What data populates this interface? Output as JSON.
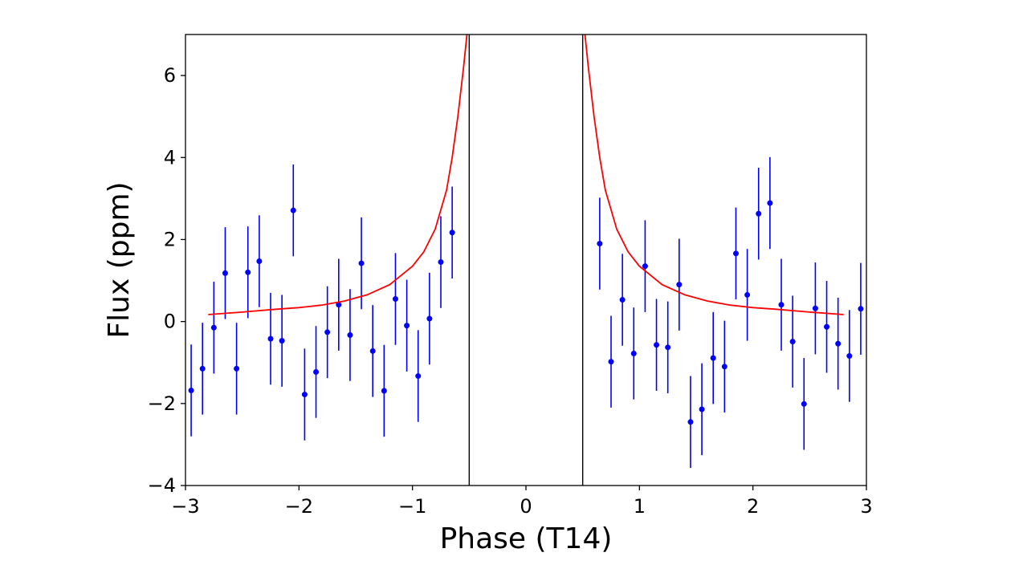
{
  "chart_data": {
    "type": "scatter",
    "xlabel": "Phase (T14)",
    "ylabel": "Flux (ppm)",
    "xlim": [
      -3,
      3
    ],
    "ylim": [
      -4,
      7
    ],
    "x_ticks": [
      -3,
      -2,
      -1,
      0,
      1,
      2,
      3
    ],
    "x_tick_labels": [
      "−3",
      "−2",
      "−1",
      "0",
      "1",
      "2",
      "3"
    ],
    "y_ticks": [
      -4,
      -2,
      0,
      2,
      4,
      6
    ],
    "y_tick_labels": [
      "−4",
      "−2",
      "0",
      "2",
      "4",
      "6"
    ],
    "grid": false,
    "vertical_lines": [
      -0.5,
      0.5
    ],
    "colors": {
      "points": "#0000ff",
      "model": "#ff0000",
      "lines": "#000000"
    },
    "points": [
      {
        "x": -2.95,
        "y": -1.68,
        "err": 1.12
      },
      {
        "x": -2.85,
        "y": -1.15,
        "err": 1.12
      },
      {
        "x": -2.75,
        "y": -0.15,
        "err": 1.12
      },
      {
        "x": -2.65,
        "y": 1.18,
        "err": 1.12
      },
      {
        "x": -2.55,
        "y": -1.15,
        "err": 1.12
      },
      {
        "x": -2.45,
        "y": 1.2,
        "err": 1.12
      },
      {
        "x": -2.35,
        "y": 1.47,
        "err": 1.12
      },
      {
        "x": -2.25,
        "y": -0.42,
        "err": 1.12
      },
      {
        "x": -2.15,
        "y": -0.47,
        "err": 1.12
      },
      {
        "x": -2.05,
        "y": 2.71,
        "err": 1.12
      },
      {
        "x": -1.95,
        "y": -1.78,
        "err": 1.12
      },
      {
        "x": -1.85,
        "y": -1.23,
        "err": 1.12
      },
      {
        "x": -1.75,
        "y": -0.26,
        "err": 1.12
      },
      {
        "x": -1.65,
        "y": 0.41,
        "err": 1.12
      },
      {
        "x": -1.55,
        "y": -0.33,
        "err": 1.12
      },
      {
        "x": -1.45,
        "y": 1.42,
        "err": 1.12
      },
      {
        "x": -1.35,
        "y": -0.72,
        "err": 1.12
      },
      {
        "x": -1.25,
        "y": -1.69,
        "err": 1.12
      },
      {
        "x": -1.15,
        "y": 0.55,
        "err": 1.12
      },
      {
        "x": -1.05,
        "y": -0.1,
        "err": 1.12
      },
      {
        "x": -0.95,
        "y": -1.33,
        "err": 1.12
      },
      {
        "x": -0.85,
        "y": 0.07,
        "err": 1.12
      },
      {
        "x": -0.75,
        "y": 1.45,
        "err": 1.12
      },
      {
        "x": -0.65,
        "y": 2.17,
        "err": 1.12
      },
      {
        "x": 0.65,
        "y": 1.9,
        "err": 1.12
      },
      {
        "x": 0.75,
        "y": -0.98,
        "err": 1.12
      },
      {
        "x": 0.85,
        "y": 0.53,
        "err": 1.12
      },
      {
        "x": 0.95,
        "y": -0.78,
        "err": 1.12
      },
      {
        "x": 1.05,
        "y": 1.35,
        "err": 1.12
      },
      {
        "x": 1.15,
        "y": -0.57,
        "err": 1.12
      },
      {
        "x": 1.25,
        "y": -0.63,
        "err": 1.12
      },
      {
        "x": 1.35,
        "y": 0.9,
        "err": 1.12
      },
      {
        "x": 1.45,
        "y": -2.45,
        "err": 1.12
      },
      {
        "x": 1.55,
        "y": -2.14,
        "err": 1.12
      },
      {
        "x": 1.65,
        "y": -0.89,
        "err": 1.12
      },
      {
        "x": 1.75,
        "y": -1.1,
        "err": 1.12
      },
      {
        "x": 1.85,
        "y": 1.66,
        "err": 1.12
      },
      {
        "x": 1.95,
        "y": 0.65,
        "err": 1.12
      },
      {
        "x": 2.05,
        "y": 2.63,
        "err": 1.12
      },
      {
        "x": 2.15,
        "y": 2.89,
        "err": 1.12
      },
      {
        "x": 2.25,
        "y": 0.41,
        "err": 1.12
      },
      {
        "x": 2.35,
        "y": -0.49,
        "err": 1.12
      },
      {
        "x": 2.45,
        "y": -2.01,
        "err": 1.12
      },
      {
        "x": 2.55,
        "y": 0.32,
        "err": 1.12
      },
      {
        "x": 2.65,
        "y": -0.13,
        "err": 1.12
      },
      {
        "x": 2.75,
        "y": -0.54,
        "err": 1.12
      },
      {
        "x": 2.85,
        "y": -0.84,
        "err": 1.12
      },
      {
        "x": 2.95,
        "y": 0.31,
        "err": 1.12
      }
    ],
    "model_curves": [
      [
        [
          -2.8,
          0.17
        ],
        [
          -2.5,
          0.23
        ],
        [
          -2.2,
          0.3
        ],
        [
          -2.0,
          0.34
        ],
        [
          -1.8,
          0.4
        ],
        [
          -1.6,
          0.5
        ],
        [
          -1.4,
          0.65
        ],
        [
          -1.2,
          0.9
        ],
        [
          -1.0,
          1.35
        ],
        [
          -0.9,
          1.7
        ],
        [
          -0.8,
          2.25
        ],
        [
          -0.7,
          3.2
        ],
        [
          -0.65,
          4.0
        ],
        [
          -0.6,
          5.0
        ],
        [
          -0.55,
          6.2
        ],
        [
          -0.52,
          7.0
        ]
      ],
      [
        [
          0.52,
          7.0
        ],
        [
          0.55,
          6.2
        ],
        [
          0.6,
          5.0
        ],
        [
          0.65,
          4.0
        ],
        [
          0.7,
          3.2
        ],
        [
          0.8,
          2.25
        ],
        [
          0.9,
          1.7
        ],
        [
          1.0,
          1.35
        ],
        [
          1.2,
          0.9
        ],
        [
          1.4,
          0.65
        ],
        [
          1.6,
          0.5
        ],
        [
          1.8,
          0.4
        ],
        [
          2.0,
          0.34
        ],
        [
          2.2,
          0.3
        ],
        [
          2.5,
          0.23
        ],
        [
          2.8,
          0.17
        ]
      ]
    ]
  }
}
